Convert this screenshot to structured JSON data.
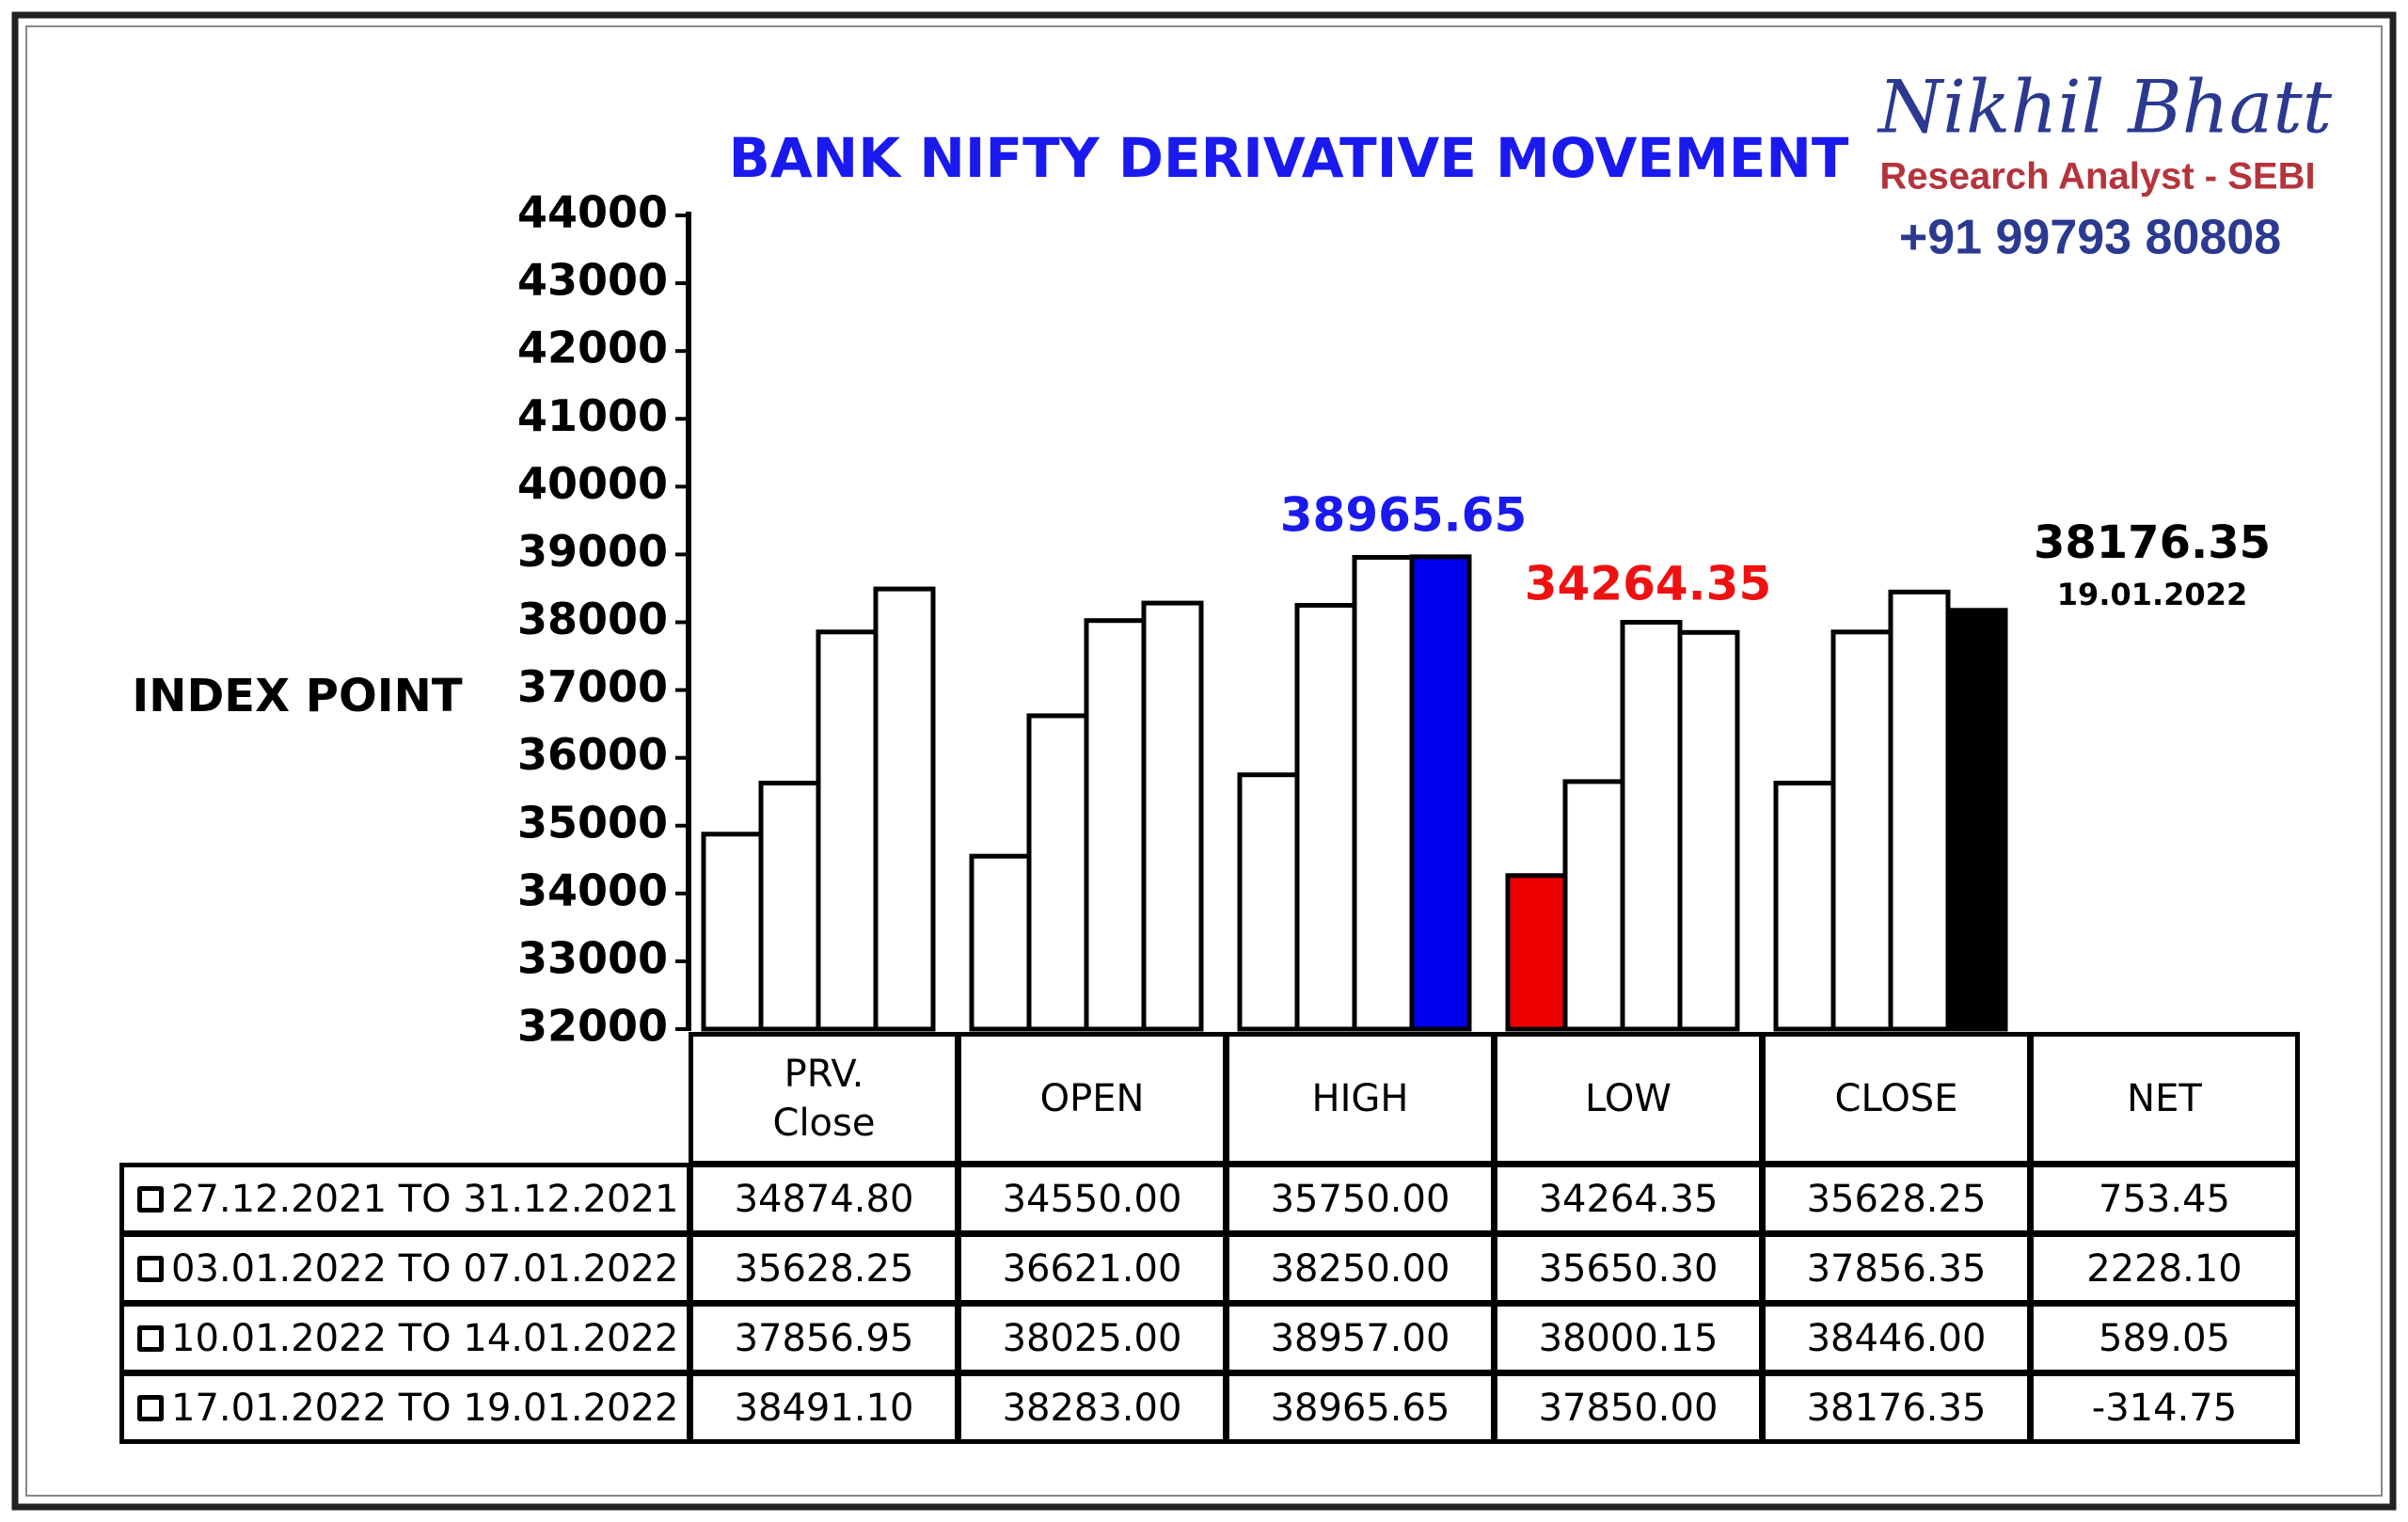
{
  "chart_data": {
    "type": "bar",
    "title": "BANK NIFTY DERIVATIVE MOVEMENT",
    "y_label": "INDEX POINT",
    "brand": {
      "name": "Nikhil Bhatt",
      "role": "Research Analyst - SEBI",
      "phone": "+91 99793 80808"
    },
    "categories": [
      "PRV. Close",
      "OPEN",
      "HIGH",
      "LOW",
      "CLOSE",
      "NET"
    ],
    "ylim": [
      32000,
      44000
    ],
    "yticks": [
      32000,
      33000,
      34000,
      35000,
      36000,
      37000,
      38000,
      39000,
      40000,
      41000,
      42000,
      43000,
      44000
    ],
    "series": [
      {
        "name": "27.12.2021 TO 31.12.2021",
        "colors": [
          "#ffffff",
          "#ffffff",
          "#ffffff",
          "#ee0000",
          "#ffffff",
          "#ffffff"
        ],
        "values": [
          34874.8,
          34550,
          35750,
          34264.35,
          35628.25,
          753.45
        ],
        "value_labels": [
          "34874.80",
          "34550.00",
          "35750.00",
          "34264.35",
          "35628.25",
          "753.45"
        ]
      },
      {
        "name": "03.01.2022 TO 07.01.2022",
        "colors": [
          "#ffffff",
          "#ffffff",
          "#ffffff",
          "#ffffff",
          "#ffffff",
          "#ffffff"
        ],
        "values": [
          35628.25,
          36621,
          38250,
          35650.3,
          37856.35,
          2228.1
        ],
        "value_labels": [
          "35628.25",
          "36621.00",
          "38250.00",
          "35650.30",
          "37856.35",
          "2228.10"
        ]
      },
      {
        "name": "10.01.2022 TO 14.01.2022",
        "colors": [
          "#ffffff",
          "#ffffff",
          "#ffffff",
          "#ffffff",
          "#ffffff",
          "#ffffff"
        ],
        "values": [
          37856.95,
          38025,
          38957,
          38000.15,
          38446,
          589.05
        ],
        "value_labels": [
          "37856.95",
          "38025.00",
          "38957.00",
          "38000.15",
          "38446.00",
          "589.05"
        ]
      },
      {
        "name": "17.01.2022 TO 19.01.2022",
        "colors": [
          "#ffffff",
          "#ffffff",
          "#0000ee",
          "#ffffff",
          "#000000",
          "#ffffff"
        ],
        "values": [
          38491.1,
          38283,
          38965.65,
          37850,
          38176.35,
          -314.75
        ],
        "value_labels": [
          "38491.10",
          "38283.00",
          "38965.65",
          "37850.00",
          "38176.35",
          "-314.75"
        ]
      }
    ],
    "annotations": [
      {
        "text": "38965.65",
        "color": "#1a1aee"
      },
      {
        "text": "34264.35",
        "color": "#ee1111"
      },
      {
        "text": "38176.35",
        "color": "#000000"
      },
      {
        "text": "19.01.2022",
        "color": "#000000"
      }
    ]
  }
}
